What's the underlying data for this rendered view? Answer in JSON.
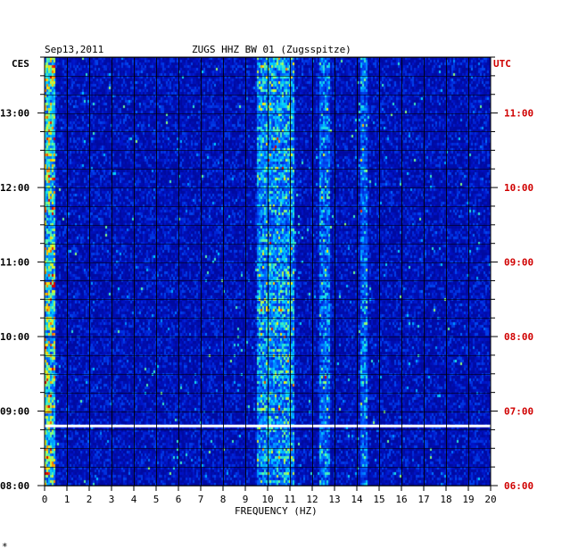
{
  "chart_data": {
    "type": "heatmap",
    "date": "Sep13,2011",
    "title": "ZUGS HHZ BW 01 (Zugsspitze)",
    "left_axis_title": "CES",
    "right_axis_title": "UTC",
    "xlabel": "FREQUENCY (HZ)",
    "x_ticks": [
      "0",
      "1",
      "2",
      "3",
      "4",
      "5",
      "6",
      "7",
      "8",
      "9",
      "10",
      "11",
      "12",
      "13",
      "14",
      "15",
      "16",
      "17",
      "18",
      "19",
      "20"
    ],
    "xlim": [
      0,
      20
    ],
    "time_range_local": [
      "08:00",
      "13:45"
    ],
    "left_ticks": [
      "13:00",
      "12:00",
      "11:00",
      "10:00",
      "09:00",
      "08:00"
    ],
    "right_ticks": [
      "11:00",
      "10:00",
      "09:00",
      "08:00",
      "07:00",
      "06:00"
    ],
    "tick_values_hours_local": [
      13,
      12,
      11,
      10,
      9,
      8
    ],
    "gap_time_local": "08:48",
    "colors": {
      "background": "#ffffff",
      "axis_text": "#000000",
      "utc_text": "#d00000",
      "grid": "#000000",
      "low": "#00008b",
      "high": "#ff0000"
    },
    "energy_bands_hz": [
      {
        "range": [
          0,
          0.5
        ],
        "level": "high"
      },
      {
        "range": [
          9.5,
          11.2
        ],
        "level": "medium-high"
      },
      {
        "range": [
          12.3,
          12.8
        ],
        "level": "medium"
      },
      {
        "range": [
          14.2,
          14.5
        ],
        "level": "medium"
      },
      {
        "range": [
          16.5,
          20
        ],
        "level": "low"
      }
    ]
  }
}
